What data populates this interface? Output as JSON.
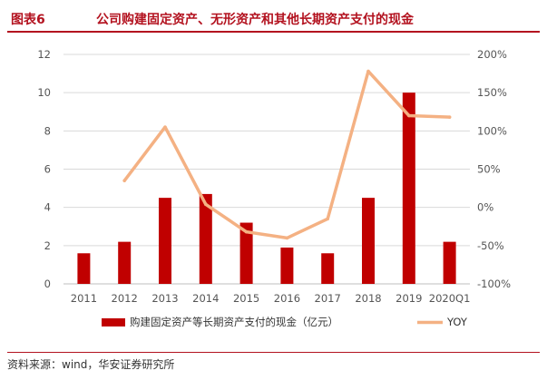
{
  "figure": {
    "number": "图表6",
    "title": "公司购建固定资产、无形资产和其他长期资产支付的现金",
    "source": "资料来源：wind，华安证券研究所"
  },
  "colors": {
    "bar": "#c00000",
    "line": "#f4b183",
    "accent": "#b3121f",
    "grid": "#d9d9d9",
    "text": "#555555"
  },
  "chart_data": {
    "type": "bar",
    "categories": [
      "2011",
      "2012",
      "2013",
      "2014",
      "2015",
      "2016",
      "2017",
      "2018",
      "2019",
      "2020Q1"
    ],
    "series": [
      {
        "name": "购建固定资产等长期资产支付的现金（亿元）",
        "type": "bar",
        "axis": "left",
        "values": [
          1.6,
          2.2,
          4.5,
          4.7,
          3.2,
          1.9,
          1.6,
          4.5,
          10.0,
          2.2
        ]
      },
      {
        "name": "YOY",
        "type": "line",
        "axis": "right",
        "values": [
          null,
          0.35,
          1.05,
          0.04,
          -0.32,
          -0.4,
          -0.15,
          1.78,
          1.2,
          1.18
        ]
      }
    ],
    "y_left": {
      "min": 0,
      "max": 12,
      "ticks": [
        0,
        2,
        4,
        6,
        8,
        10,
        12
      ],
      "tick_labels": [
        "0",
        "2",
        "4",
        "6",
        "8",
        "10",
        "12"
      ]
    },
    "y_right": {
      "min": -1,
      "max": 2,
      "ticks": [
        -1,
        -0.5,
        0,
        0.5,
        1,
        1.5,
        2
      ],
      "tick_labels": [
        "-100%",
        "-50%",
        "0%",
        "50%",
        "100%",
        "150%",
        "200%"
      ]
    },
    "grid": true,
    "legend": {
      "position": "bottom",
      "entries": [
        "购建固定资产等长期资产支付的现金（亿元）",
        "YOY"
      ]
    }
  }
}
